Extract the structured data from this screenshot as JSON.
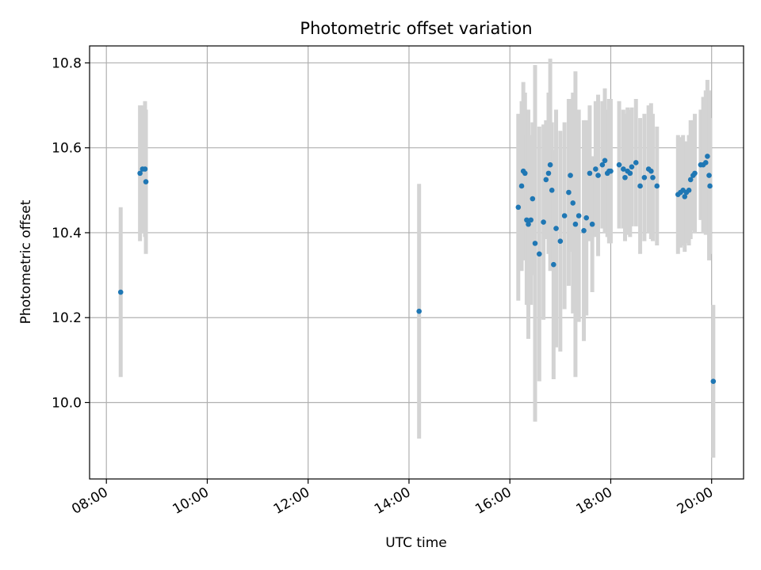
{
  "chart_data": {
    "type": "scatter",
    "title": "Photometric offset variation",
    "xlabel": "UTC time",
    "ylabel": "Photometric offset",
    "x_ticks": [
      "08:00",
      "10:00",
      "12:00",
      "14:00",
      "16:00",
      "18:00",
      "20:00"
    ],
    "y_ticks": [
      "10.0",
      "10.2",
      "10.4",
      "10.6",
      "10.8"
    ],
    "xlim": [
      "07:40",
      "20:38"
    ],
    "ylim": [
      9.82,
      10.84
    ],
    "grid": true,
    "colors": {
      "points": "#1f77b4",
      "error_bars": "#d3d3d3"
    },
    "series": [
      {
        "x": [
          "08:17",
          "08:40",
          "08:43",
          "08:46",
          "08:47",
          "14:12",
          "16:10",
          "16:14",
          "16:16",
          "16:18",
          "16:20",
          "16:22",
          "16:25",
          "16:27",
          "16:30",
          "16:35",
          "16:40",
          "16:43",
          "16:46",
          "16:48",
          "16:50",
          "16:52",
          "16:55",
          "17:00",
          "17:05",
          "17:10",
          "17:12",
          "17:15",
          "17:18",
          "17:22",
          "17:28",
          "17:31",
          "17:35",
          "17:38",
          "17:42",
          "17:45",
          "17:50",
          "17:53",
          "17:56",
          "17:58",
          "18:00",
          "18:10",
          "18:15",
          "18:17",
          "18:20",
          "18:23",
          "18:25",
          "18:30",
          "18:35",
          "18:40",
          "18:45",
          "18:48",
          "18:50",
          "18:55",
          "19:20",
          "19:23",
          "19:26",
          "19:28",
          "19:30",
          "19:33",
          "19:35",
          "19:38",
          "19:40",
          "19:47",
          "19:50",
          "19:53",
          "19:55",
          "19:57",
          "19:58",
          "20:02"
        ],
        "y": [
          10.26,
          10.54,
          10.55,
          10.55,
          10.52,
          10.215,
          10.46,
          10.51,
          10.545,
          10.54,
          10.43,
          10.42,
          10.43,
          10.48,
          10.375,
          10.35,
          10.425,
          10.525,
          10.54,
          10.56,
          10.5,
          10.325,
          10.41,
          10.38,
          10.44,
          10.495,
          10.535,
          10.47,
          10.42,
          10.44,
          10.405,
          10.435,
          10.54,
          10.42,
          10.55,
          10.535,
          10.56,
          10.57,
          10.54,
          10.545,
          10.545,
          10.56,
          10.55,
          10.53,
          10.545,
          10.54,
          10.555,
          10.565,
          10.51,
          10.53,
          10.55,
          10.545,
          10.53,
          10.51,
          10.49,
          10.495,
          10.5,
          10.485,
          10.495,
          10.5,
          10.525,
          10.535,
          10.54,
          10.56,
          10.56,
          10.565,
          10.58,
          10.535,
          10.51,
          10.05
        ],
        "err": [
          0.2,
          0.16,
          0.15,
          0.16,
          0.17,
          0.3,
          0.22,
          0.2,
          0.21,
          0.19,
          0.2,
          0.27,
          0.2,
          0.18,
          0.42,
          0.3,
          0.23,
          0.14,
          0.19,
          0.25,
          0.16,
          0.27,
          0.28,
          0.26,
          0.22,
          0.22,
          0.18,
          0.26,
          0.36,
          0.25,
          0.26,
          0.23,
          0.16,
          0.16,
          0.16,
          0.19,
          0.15,
          0.17,
          0.15,
          0.17,
          0.17,
          0.15,
          0.14,
          0.15,
          0.15,
          0.15,
          0.14,
          0.15,
          0.16,
          0.15,
          0.15,
          0.16,
          0.15,
          0.14,
          0.14,
          0.13,
          0.13,
          0.13,
          0.12,
          0.13,
          0.14,
          0.13,
          0.14,
          0.13,
          0.16,
          0.17,
          0.18,
          0.2,
          0.16,
          0.18
        ]
      }
    ]
  }
}
